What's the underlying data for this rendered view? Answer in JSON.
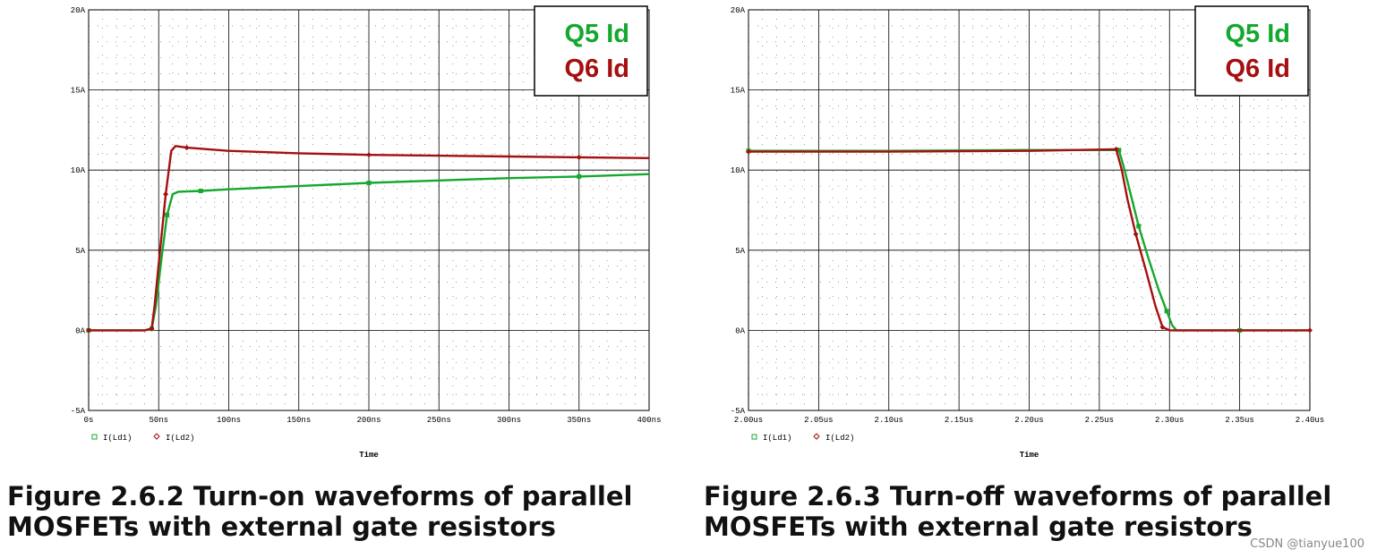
{
  "colors": {
    "green": "#14a82e",
    "red": "#a50f0f",
    "grid": "#000000",
    "frame": "#000000"
  },
  "charts": [
    {
      "legend_box": {
        "line1": "Q5 Id",
        "line2": "Q6 Id"
      },
      "legend_items": [
        "I(Ld1)",
        "I(Ld2)"
      ],
      "caption_lines": [
        "Figure 2.6.2 Turn-on waveforms of parallel",
        "MOSFETs with external gate resistors"
      ]
    },
    {
      "legend_box": {
        "line1": "Q5 Id",
        "line2": "Q6 Id"
      },
      "legend_items": [
        "I(Ld1)",
        "I(Ld2)"
      ],
      "caption_lines": [
        "Figure 2.6.3 Turn-off waveforms of parallel",
        "MOSFETs with external gate resistors"
      ]
    }
  ],
  "watermark": "CSDN @tianyue100",
  "chart_data": [
    {
      "type": "line",
      "xlabel": "Time",
      "ylabel": "",
      "xlim": [
        0,
        400
      ],
      "ylim": [
        -5,
        20
      ],
      "x_ticks": [
        "0s",
        "50ns",
        "100ns",
        "150ns",
        "200ns",
        "250ns",
        "300ns",
        "350ns",
        "400ns"
      ],
      "y_ticks": [
        "-5A",
        "0A",
        "5A",
        "10A",
        "15A",
        "20A"
      ],
      "legend": "top-right",
      "grid": true,
      "series": [
        {
          "name": "I(Ld1)",
          "color": "#14a82e",
          "points": [
            [
              0,
              0
            ],
            [
              20,
              0
            ],
            [
              40,
              0
            ],
            [
              45,
              0.1
            ],
            [
              48,
              1.5
            ],
            [
              52,
              4.5
            ],
            [
              56,
              7.2
            ],
            [
              60,
              8.5
            ],
            [
              64,
              8.65
            ],
            [
              80,
              8.7
            ],
            [
              100,
              8.8
            ],
            [
              150,
              9.0
            ],
            [
              200,
              9.2
            ],
            [
              250,
              9.35
            ],
            [
              300,
              9.5
            ],
            [
              350,
              9.6
            ],
            [
              400,
              9.75
            ]
          ]
        },
        {
          "name": "I(Ld2)",
          "color": "#a50f0f",
          "points": [
            [
              0,
              0
            ],
            [
              20,
              0
            ],
            [
              40,
              0
            ],
            [
              45,
              0.1
            ],
            [
              47,
              1.5
            ],
            [
              51,
              5.0
            ],
            [
              55,
              8.5
            ],
            [
              59,
              11.2
            ],
            [
              62,
              11.5
            ],
            [
              70,
              11.4
            ],
            [
              100,
              11.2
            ],
            [
              150,
              11.05
            ],
            [
              200,
              10.95
            ],
            [
              250,
              10.9
            ],
            [
              300,
              10.85
            ],
            [
              350,
              10.8
            ],
            [
              400,
              10.75
            ]
          ]
        }
      ]
    },
    {
      "type": "line",
      "xlabel": "Time",
      "ylabel": "",
      "xlim": [
        2.0,
        2.4
      ],
      "ylim": [
        -5,
        20
      ],
      "x_ticks": [
        "2.00us",
        "2.05us",
        "2.10us",
        "2.15us",
        "2.20us",
        "2.25us",
        "2.30us",
        "2.35us",
        "2.40us"
      ],
      "y_ticks": [
        "-5A",
        "0A",
        "5A",
        "10A",
        "15A",
        "20A"
      ],
      "legend": "top-right",
      "grid": true,
      "series": [
        {
          "name": "I(Ld1)",
          "color": "#14a82e",
          "points": [
            [
              2.0,
              11.2
            ],
            [
              2.1,
              11.2
            ],
            [
              2.2,
              11.25
            ],
            [
              2.264,
              11.25
            ],
            [
              2.268,
              10.0
            ],
            [
              2.272,
              8.6
            ],
            [
              2.278,
              6.5
            ],
            [
              2.285,
              4.5
            ],
            [
              2.292,
              2.6
            ],
            [
              2.298,
              1.2
            ],
            [
              2.302,
              0.3
            ],
            [
              2.305,
              0
            ],
            [
              2.35,
              0
            ],
            [
              2.4,
              0
            ]
          ]
        },
        {
          "name": "I(Ld2)",
          "color": "#a50f0f",
          "points": [
            [
              2.0,
              11.15
            ],
            [
              2.1,
              11.15
            ],
            [
              2.2,
              11.2
            ],
            [
              2.262,
              11.3
            ],
            [
              2.266,
              10.0
            ],
            [
              2.27,
              8.2
            ],
            [
              2.276,
              6.0
            ],
            [
              2.283,
              3.8
            ],
            [
              2.29,
              1.5
            ],
            [
              2.295,
              0.2
            ],
            [
              2.3,
              0
            ],
            [
              2.35,
              0
            ],
            [
              2.4,
              0
            ]
          ]
        }
      ]
    }
  ]
}
